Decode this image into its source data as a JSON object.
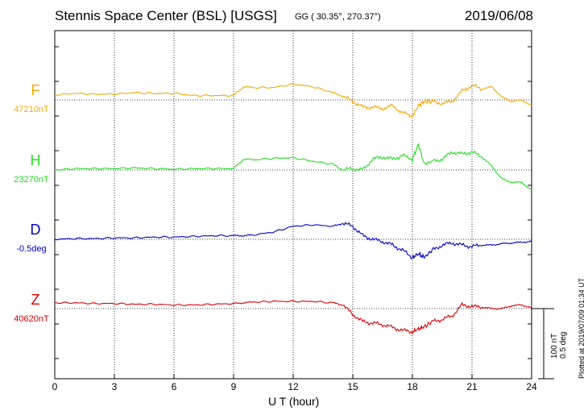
{
  "header": {
    "title": "Stennis Space Center (BSL)  [USGS]",
    "coords": "GG ( 30.35°, 270.37°)",
    "date": "2019/06/08"
  },
  "footer": {
    "plotted": "Plotted at 2019/07/09 01:34 UT",
    "scale_nt": "100 nT",
    "scale_deg": "0.5 deg"
  },
  "colors": {
    "F": "#f5a800",
    "H": "#22dd22",
    "D": "#0000cc",
    "Z": "#dd0000",
    "grid": "#000000"
  },
  "chart_data": {
    "type": "line",
    "title": "Stennis Space Center (BSL)  [USGS]",
    "xlabel": "U T (hour)",
    "ylabel": "",
    "xlim": [
      0,
      24
    ],
    "xticks": [
      0,
      3,
      6,
      9,
      12,
      15,
      18,
      21,
      24
    ],
    "grid": true,
    "scale_bar": "100 nT / 0.5 deg",
    "x": [
      0,
      1,
      2,
      3,
      4,
      5,
      6,
      7,
      8,
      9,
      9.5,
      10,
      11,
      12,
      13,
      14,
      14.5,
      15,
      15.5,
      16,
      16.5,
      17,
      17.5,
      18,
      18.3,
      18.6,
      19,
      19.5,
      20,
      20.5,
      21,
      21.5,
      22,
      22.5,
      23,
      23.5,
      24
    ],
    "series": [
      {
        "name": "F",
        "baseline_label": "47210nT",
        "baseline_offset": 0,
        "values": [
          7,
          9,
          8,
          8,
          10,
          9,
          9,
          6,
          6,
          6,
          18,
          17,
          17,
          22,
          18,
          10,
          5,
          -2,
          -10,
          -10,
          -12,
          -8,
          -18,
          -22,
          -8,
          -2,
          -2,
          -5,
          -2,
          12,
          20,
          15,
          18,
          4,
          -2,
          0,
          -8
        ]
      },
      {
        "name": "H",
        "baseline_label": "23270nT",
        "baseline_offset": 0,
        "values": [
          0,
          2,
          2,
          2,
          3,
          2,
          1,
          2,
          2,
          2,
          15,
          14,
          16,
          17,
          12,
          8,
          0,
          2,
          0,
          15,
          18,
          15,
          20,
          15,
          35,
          8,
          12,
          15,
          25,
          22,
          25,
          18,
          5,
          -12,
          -17,
          -17,
          -28
        ]
      },
      {
        "name": "D",
        "baseline_label": "-0.5deg",
        "baseline_offset": 0,
        "values": [
          0,
          1,
          1,
          2,
          2,
          3,
          3,
          4,
          5,
          5,
          5,
          6,
          10,
          18,
          20,
          18,
          22,
          18,
          5,
          0,
          -3,
          -8,
          -15,
          -25,
          -20,
          -25,
          -15,
          -8,
          -5,
          -8,
          -10,
          -8,
          -8,
          -6,
          -5,
          -4,
          -3
        ]
      },
      {
        "name": "Z",
        "baseline_label": "40620nT",
        "baseline_offset": 0,
        "values": [
          8,
          8,
          7,
          7,
          6,
          6,
          5,
          5,
          6,
          7,
          8,
          9,
          10,
          10,
          10,
          8,
          5,
          -8,
          -18,
          -20,
          -22,
          -26,
          -30,
          -32,
          -28,
          -25,
          -18,
          -15,
          -10,
          5,
          3,
          2,
          0,
          0,
          4,
          5,
          1
        ]
      }
    ]
  }
}
